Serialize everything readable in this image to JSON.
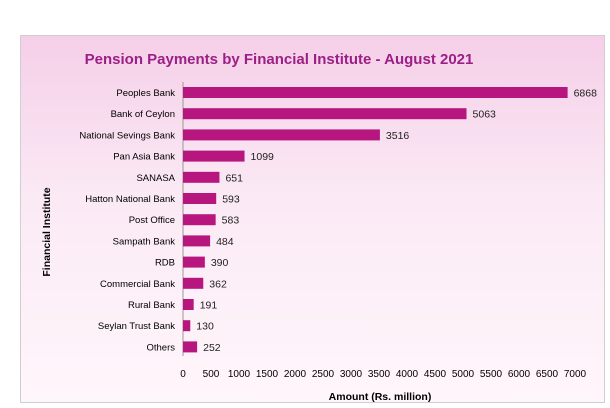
{
  "chart_data": {
    "type": "bar",
    "orientation": "horizontal",
    "title": "Pension Payments by Financial  Institute - August 2021",
    "xlabel": "Amount (Rs. million)",
    "ylabel": "Financial  Institute",
    "xlim": [
      0,
      7000
    ],
    "ticks": [
      "0",
      "500",
      "1000",
      "1500",
      "2000",
      "2500",
      "3000",
      "3500",
      "4000",
      "4500",
      "5000",
      "5500",
      "6000",
      "6500",
      "7000"
    ],
    "categories": [
      "Peoples Bank",
      "Bank of Ceylon",
      "National Sevings Bank",
      "Pan Asia Bank",
      "SANASA",
      "Hatton National Bank",
      "Post Office",
      "Sampath Bank",
      "RDB",
      "Commercial Bank",
      "Rural Bank",
      "Seylan Trust Bank",
      "Others"
    ],
    "values": [
      6868,
      5063,
      3516,
      1099,
      651,
      593,
      583,
      484,
      390,
      362,
      191,
      130,
      252
    ],
    "grid": false,
    "data_labels": true,
    "bar_color": "#b8167f"
  }
}
